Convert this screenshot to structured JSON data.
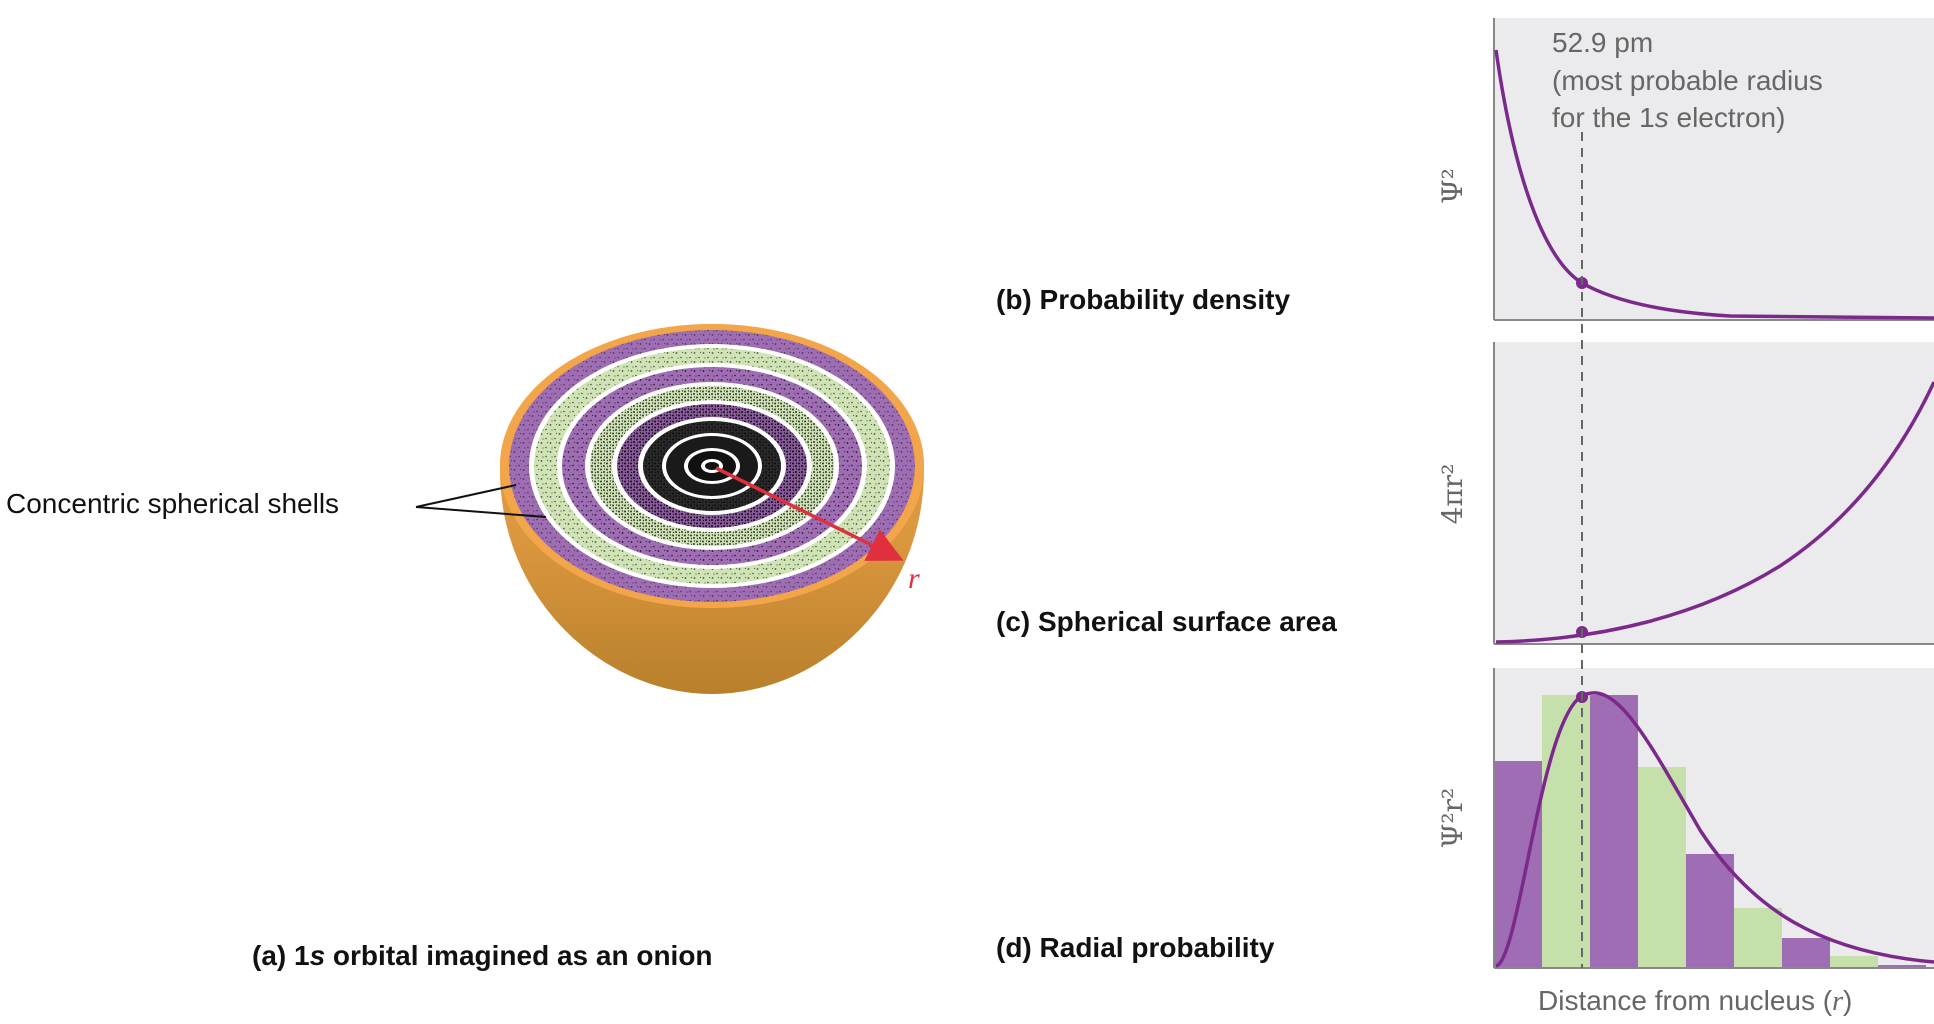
{
  "captions": {
    "a_prefix": "(a) 1",
    "a_italic": "s",
    "a_suffix": " orbital imagined as an onion",
    "b": "(b) Probability density",
    "c": "(c) Spherical surface area",
    "d": "(d) Radial probability"
  },
  "onion": {
    "shell_label": "Concentric spherical shells",
    "radius_label": "r",
    "colors": {
      "purple": "#9f6db3",
      "green": "#cfe3b4",
      "orange": "#f3a54a",
      "orange_dark": "#c98a2c",
      "arrow": "#e0303f"
    }
  },
  "annotation": {
    "line1": "52.9 pm",
    "line2": "(most probable radius",
    "line3_prefix": "for the 1",
    "line3_italic": "s",
    "line3_suffix": " electron)"
  },
  "axes": {
    "b_ylabel": "Ψ²",
    "c_ylabel": "4πr²",
    "d_ylabel": "Ψ²r²",
    "xlabel_prefix": "Distance from nucleus (",
    "xlabel_italic": "r",
    "xlabel_suffix": ")"
  },
  "chart_data": [
    {
      "type": "line",
      "title": "(b) Probability density",
      "ylabel": "Ψ²",
      "marked_x": "52.9 pm",
      "series": [
        {
          "values_desc": "exponential decay",
          "color": "#7b2a8c"
        }
      ]
    },
    {
      "type": "line",
      "title": "(c) Spherical surface area",
      "ylabel": "4πr²",
      "marked_x": "52.9 pm",
      "series": [
        {
          "values_desc": "quadratic increase",
          "color": "#7b2a8c"
        }
      ]
    },
    {
      "type": "bar",
      "title": "(d) Radial probability",
      "ylabel": "Ψ²r²",
      "xlabel": "Distance from nucleus (r)",
      "bars": [
        0.69,
        0.91,
        0.91,
        0.67,
        0.38,
        0.2,
        0.1,
        0.04,
        0.01
      ],
      "bar_colors": [
        "#9f6db3",
        "#c6e0ac",
        "#9f6db3",
        "#c6e0ac",
        "#9f6db3",
        "#c6e0ac",
        "#9f6db3",
        "#c6e0ac",
        "#9f6db3"
      ],
      "curve_peak": "52.9 pm"
    }
  ]
}
